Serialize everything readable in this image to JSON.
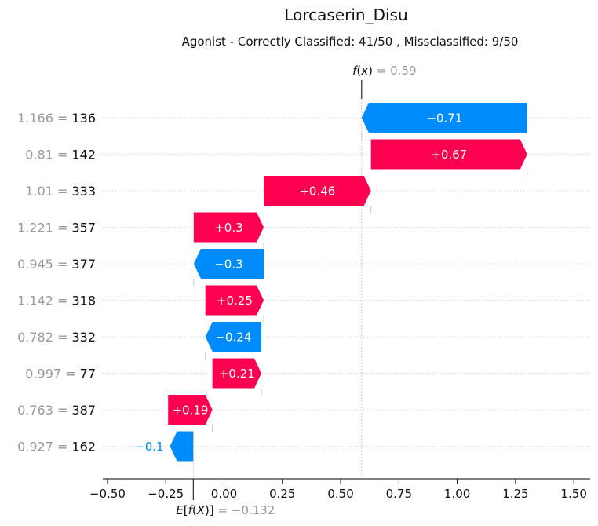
{
  "chart_data": {
    "type": "waterfall",
    "title": "Lorcaserin_Disu",
    "subtitle": "Agonist - Correctly Classified: 41/50 , Missclassified: 9/50",
    "fx_value": 0.59,
    "fx_value_label": "0.59",
    "efx_value": -0.132,
    "efx_value_label": "−0.132",
    "xlim": [
      -0.52,
      1.57
    ],
    "x_ticks": [
      -0.5,
      -0.25,
      0.0,
      0.25,
      0.5,
      0.75,
      1.0,
      1.25,
      1.5
    ],
    "x_tick_labels": [
      "−0.50",
      "−0.25",
      "0.00",
      "0.25",
      "0.50",
      "0.75",
      "1.00",
      "1.25",
      "1.50"
    ],
    "colors": {
      "positive": "#ff0051",
      "negative": "#008bfb",
      "grid": "#cccccc"
    },
    "features": [
      {
        "value_label": "1.166",
        "feature": "136",
        "start": 1.3,
        "end": 0.59,
        "label": "−0.71",
        "sign": "negative"
      },
      {
        "value_label": "0.81",
        "feature": "142",
        "start": 0.63,
        "end": 1.3,
        "label": "+0.67",
        "sign": "positive"
      },
      {
        "value_label": "1.01",
        "feature": "333",
        "start": 0.17,
        "end": 0.63,
        "label": "+0.46",
        "sign": "positive"
      },
      {
        "value_label": "1.221",
        "feature": "357",
        "start": -0.13,
        "end": 0.17,
        "label": "+0.3",
        "sign": "positive"
      },
      {
        "value_label": "0.945",
        "feature": "377",
        "start": 0.17,
        "end": -0.13,
        "label": "−0.3",
        "sign": "negative"
      },
      {
        "value_label": "1.142",
        "feature": "318",
        "start": -0.08,
        "end": 0.17,
        "label": "+0.25",
        "sign": "positive"
      },
      {
        "value_label": "0.782",
        "feature": "332",
        "start": 0.16,
        "end": -0.08,
        "label": "−0.24",
        "sign": "negative"
      },
      {
        "value_label": "0.997",
        "feature": "77",
        "start": -0.05,
        "end": 0.16,
        "label": "+0.21",
        "sign": "positive"
      },
      {
        "value_label": "0.763",
        "feature": "387",
        "start": -0.24,
        "end": -0.05,
        "label": "+0.19",
        "sign": "positive"
      },
      {
        "value_label": "0.927",
        "feature": "162",
        "start": -0.132,
        "end": -0.232,
        "label": "−0.1",
        "sign": "negative"
      }
    ]
  }
}
